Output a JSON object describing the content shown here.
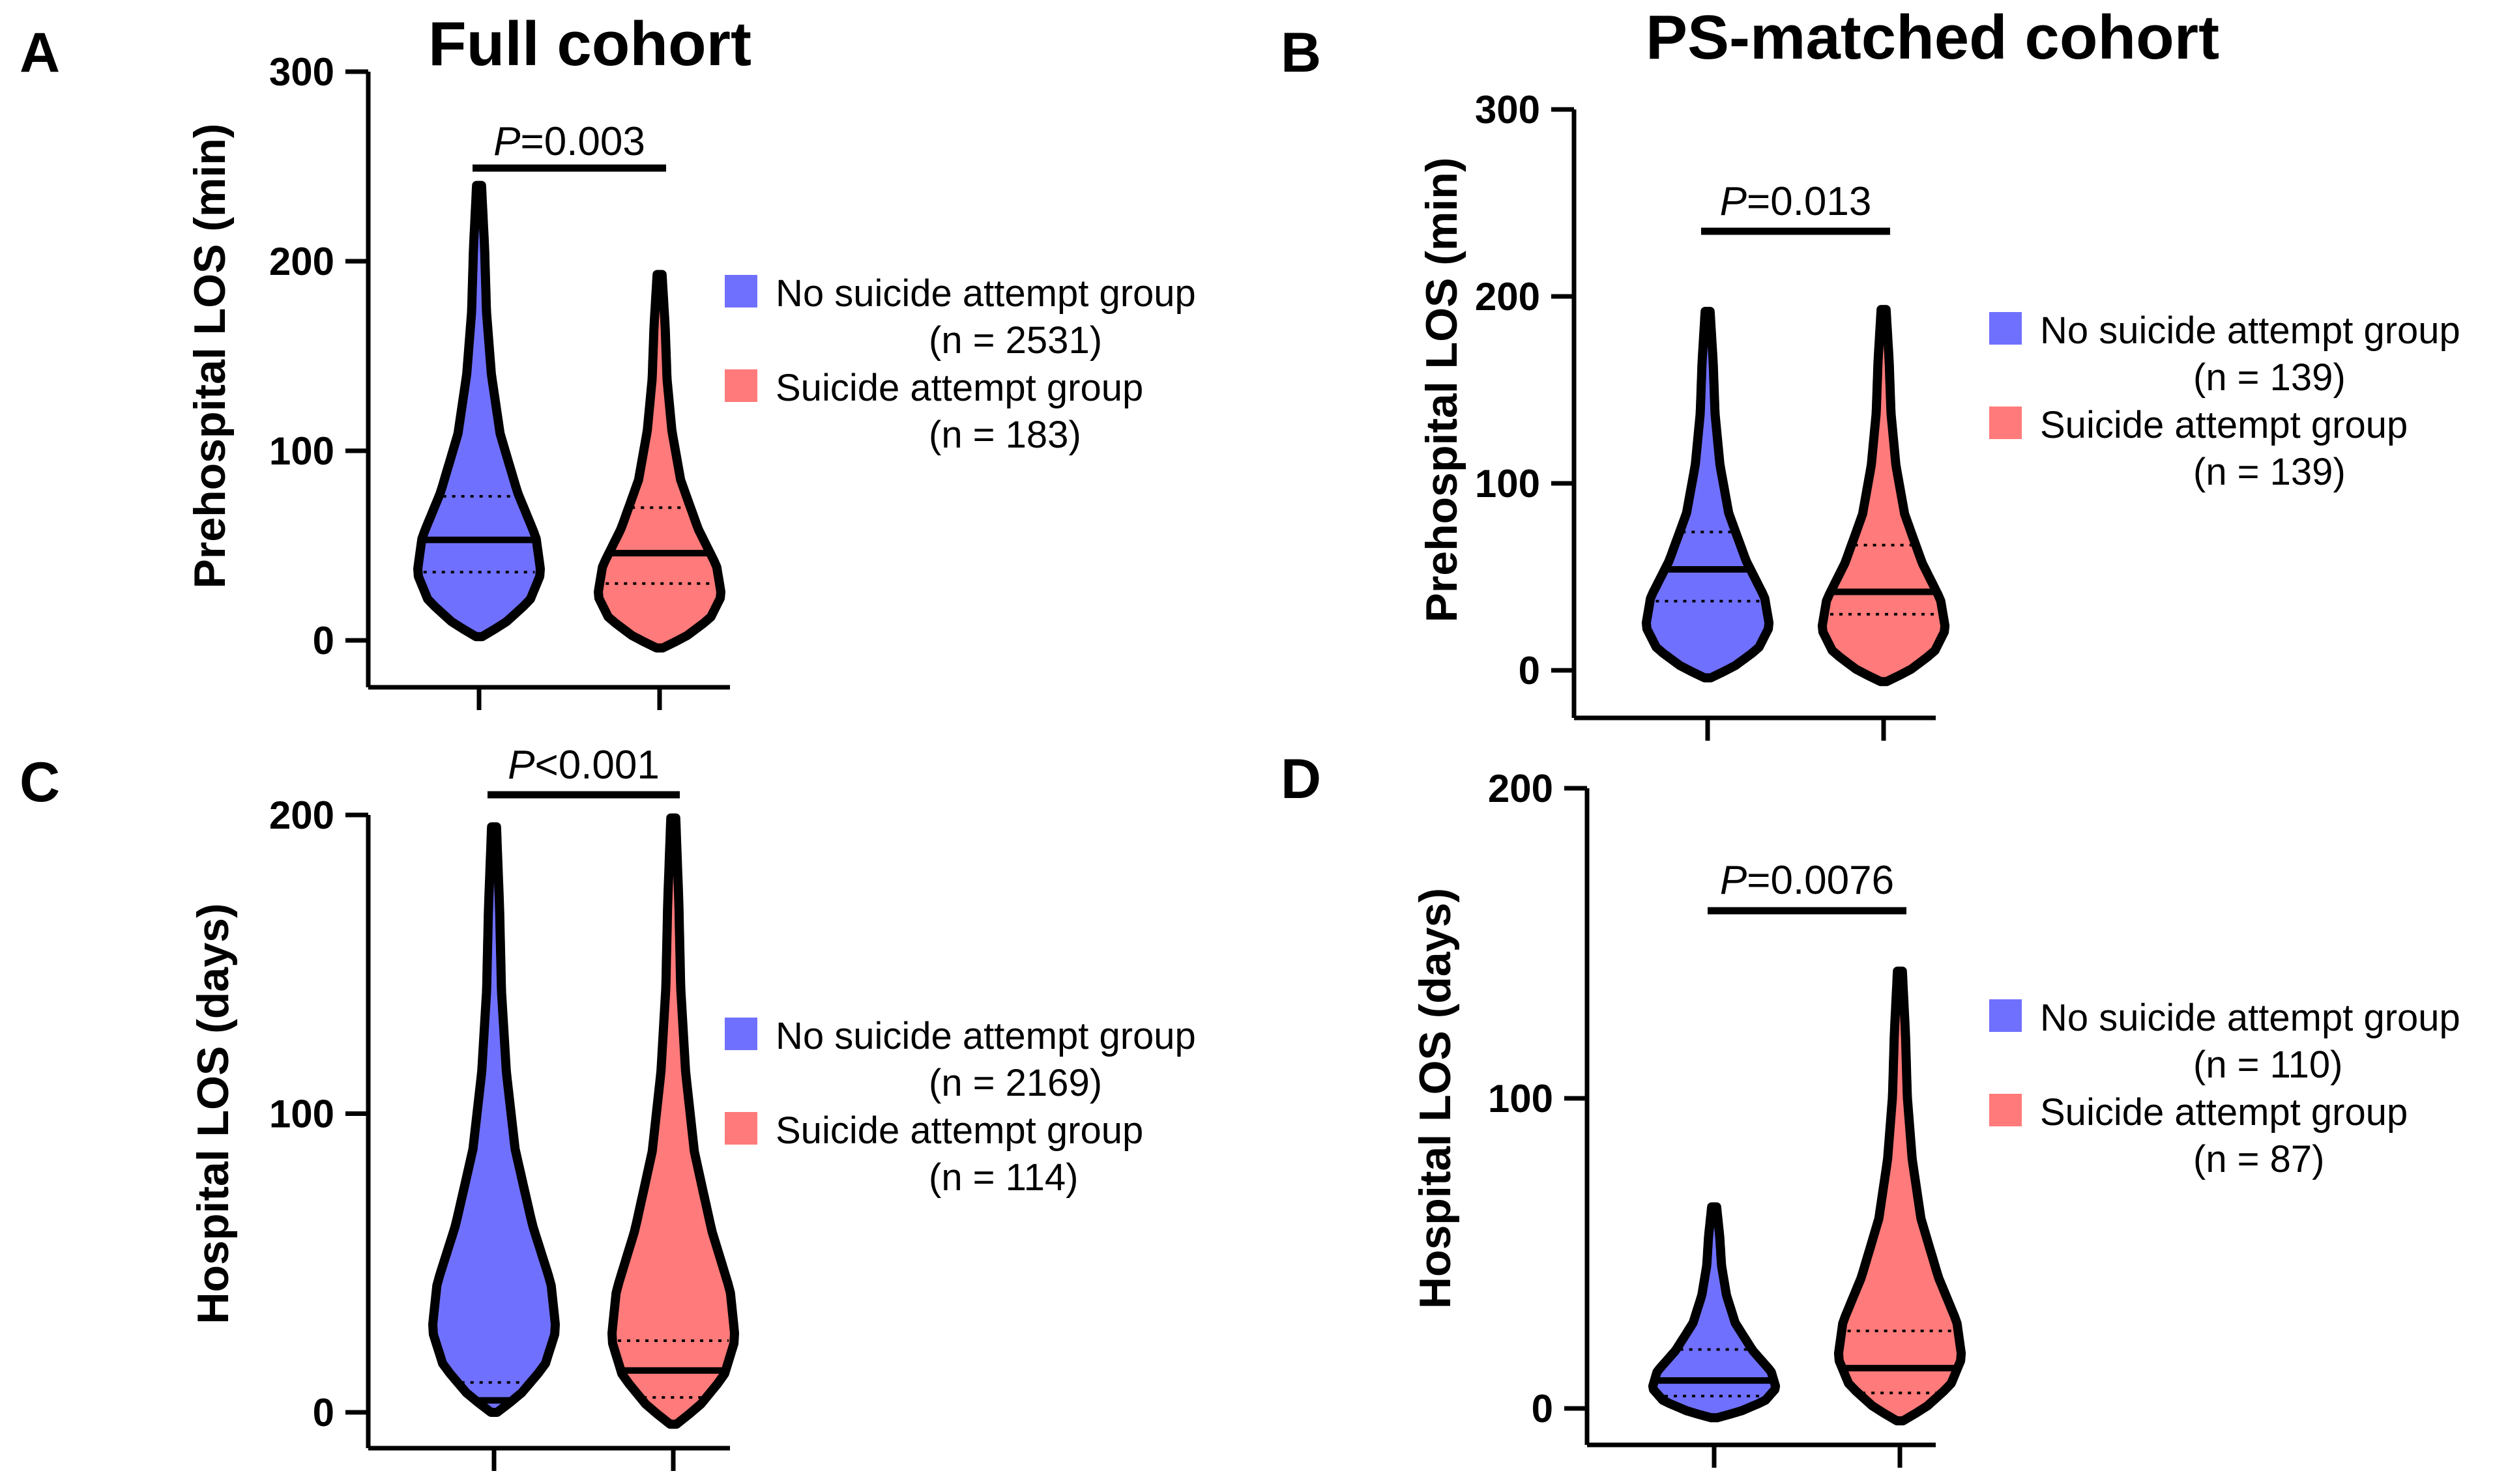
{
  "chart_data": [
    {
      "type": "violin",
      "panel": "A",
      "title": "Full cohort",
      "ylabel": "Prehospital LOS (min)",
      "ylim": [
        0,
        300
      ],
      "yticks": [
        "0",
        "100",
        "200",
        "300"
      ],
      "p_label": {
        "italic": "P",
        "rest": "=0.003"
      },
      "series": [
        {
          "name": "No suicide attempt group",
          "n_label": "(n = 2531)",
          "color": "#7070FF",
          "min": 2,
          "q1": 36,
          "median": 53,
          "q3": 76,
          "max": 240
        },
        {
          "name": "Suicide attempt group",
          "n_label": "(n = 183)",
          "color": "#FF7A7A",
          "min": -4,
          "q1": 30,
          "median": 46,
          "q3": 70,
          "max": 193
        }
      ]
    },
    {
      "type": "violin",
      "panel": "B",
      "title": "PS-matched cohort",
      "ylabel": "Prehospital LOS (min)",
      "ylim": [
        0,
        300
      ],
      "yticks": [
        "0",
        "100",
        "200",
        "300"
      ],
      "p_label": {
        "italic": "P",
        "rest": "=0.013"
      },
      "series": [
        {
          "name": "No suicide attempt group",
          "n_label": "(n = 139)",
          "color": "#7070FF",
          "min": -4,
          "q1": 37,
          "median": 54,
          "q3": 74,
          "max": 192
        },
        {
          "name": "Suicide attempt group",
          "n_label": "(n = 139)",
          "color": "#FF7A7A",
          "min": -6,
          "q1": 30,
          "median": 42,
          "q3": 67,
          "max": 193
        }
      ]
    },
    {
      "type": "violin",
      "panel": "C",
      "title": "",
      "ylabel": "Hospital LOS (days)",
      "ylim": [
        0,
        200
      ],
      "yticks": [
        "0",
        "100",
        "200"
      ],
      "p_label": {
        "italic": "P",
        "rest": "<0.001"
      },
      "series": [
        {
          "name": "No suicide attempt group",
          "n_label": "(n = 2169)",
          "color": "#7070FF",
          "min": 0,
          "q1": 1,
          "median": 4,
          "q3": 10,
          "max": 196
        },
        {
          "name": "Suicide attempt group",
          "n_label": "(n = 114)",
          "color": "#FF7A7A",
          "min": -4,
          "q1": 5,
          "median": 14,
          "q3": 24,
          "max": 199
        }
      ]
    },
    {
      "type": "violin",
      "panel": "D",
      "title": "",
      "ylabel": "Hospital LOS (days)",
      "ylim": [
        0,
        200
      ],
      "yticks": [
        "0",
        "100",
        "200"
      ],
      "p_label": {
        "italic": "P",
        "rest": "=0.0076"
      },
      "series": [
        {
          "name": "No suicide attempt group",
          "n_label": "(n = 110)",
          "color": "#7070FF",
          "min": -3,
          "q1": 4,
          "median": 9,
          "q3": 19,
          "max": 65
        },
        {
          "name": "Suicide attempt group",
          "n_label": "(n = 87)",
          "color": "#FF7A7A",
          "min": -4,
          "q1": 5,
          "median": 13,
          "q3": 25,
          "max": 141
        }
      ]
    }
  ]
}
